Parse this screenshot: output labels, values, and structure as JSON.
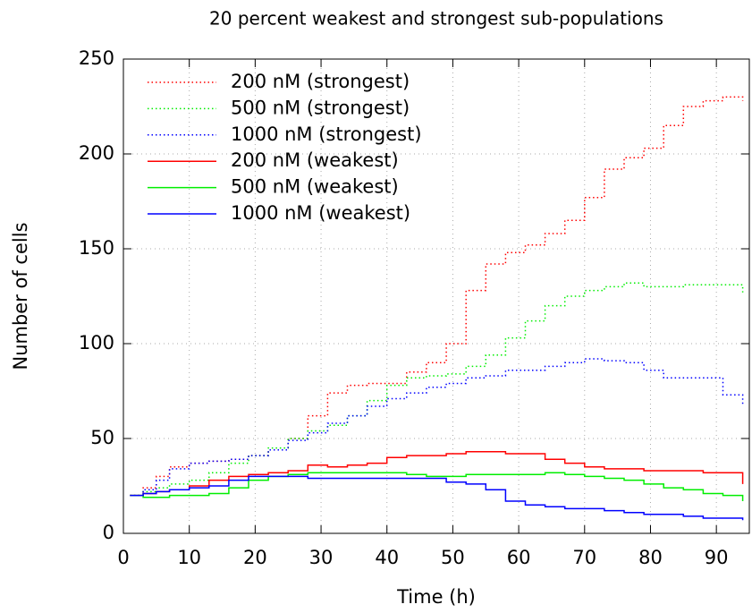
{
  "chart_data": {
    "type": "line",
    "title": "20 percent weakest and strongest sub-populations",
    "xlabel": "Time (h)",
    "ylabel": "Number of cells",
    "x": [
      1,
      3,
      5,
      7,
      10,
      13,
      16,
      19,
      22,
      25,
      28,
      31,
      34,
      37,
      40,
      43,
      46,
      49,
      52,
      55,
      58,
      61,
      64,
      67,
      70,
      73,
      76,
      79,
      82,
      85,
      88,
      91,
      94
    ],
    "series": [
      {
        "name": "200 nM (strongest)",
        "color": "#ff0000",
        "style": "dotted",
        "values": [
          20,
          24,
          30,
          35,
          37,
          38,
          39,
          41,
          44,
          50,
          62,
          74,
          78,
          79,
          79,
          85,
          90,
          100,
          128,
          142,
          148,
          152,
          158,
          165,
          177,
          192,
          198,
          203,
          215,
          225,
          228,
          230,
          228
        ]
      },
      {
        "name": "500 nM (strongest)",
        "color": "#00ee00",
        "style": "dotted",
        "values": [
          20,
          22,
          24,
          26,
          28,
          32,
          37,
          41,
          45,
          50,
          54,
          57,
          62,
          70,
          78,
          82,
          83,
          84,
          88,
          94,
          103,
          112,
          120,
          125,
          128,
          130,
          132,
          130,
          130,
          131,
          131,
          131,
          127
        ]
      },
      {
        "name": "1000 nM (strongest)",
        "color": "#0000ff",
        "style": "dotted",
        "values": [
          20,
          23,
          28,
          34,
          37,
          38,
          39,
          41,
          44,
          49,
          53,
          58,
          62,
          67,
          71,
          74,
          77,
          79,
          82,
          83,
          86,
          86,
          88,
          90,
          92,
          91,
          90,
          86,
          82,
          82,
          82,
          73,
          68
        ]
      },
      {
        "name": "200 nM (weakest)",
        "color": "#ff0000",
        "style": "solid",
        "values": [
          20,
          21,
          22,
          23,
          25,
          28,
          30,
          31,
          32,
          33,
          36,
          35,
          36,
          37,
          40,
          41,
          41,
          42,
          43,
          43,
          42,
          42,
          39,
          37,
          35,
          34,
          34,
          33,
          33,
          33,
          32,
          32,
          26
        ]
      },
      {
        "name": "500 nM (weakest)",
        "color": "#00ee00",
        "style": "solid",
        "values": [
          20,
          19,
          19,
          20,
          20,
          21,
          24,
          28,
          30,
          31,
          32,
          32,
          32,
          32,
          32,
          31,
          30,
          30,
          31,
          31,
          31,
          31,
          32,
          31,
          30,
          29,
          28,
          26,
          24,
          23,
          21,
          20,
          17
        ]
      },
      {
        "name": "1000 nM (weakest)",
        "color": "#0000ff",
        "style": "solid",
        "values": [
          20,
          21,
          22,
          23,
          24,
          25,
          28,
          30,
          30,
          30,
          29,
          29,
          29,
          29,
          29,
          29,
          29,
          27,
          26,
          23,
          17,
          15,
          14,
          13,
          13,
          12,
          11,
          10,
          10,
          9,
          8,
          8,
          7
        ]
      }
    ],
    "xlim": [
      0,
      95
    ],
    "ylim": [
      0,
      250
    ],
    "xticks": [
      0,
      10,
      20,
      30,
      40,
      50,
      60,
      70,
      80,
      90
    ],
    "yticks": [
      0,
      50,
      100,
      150,
      200,
      250
    ],
    "grid": true,
    "legend": "upper-left"
  }
}
